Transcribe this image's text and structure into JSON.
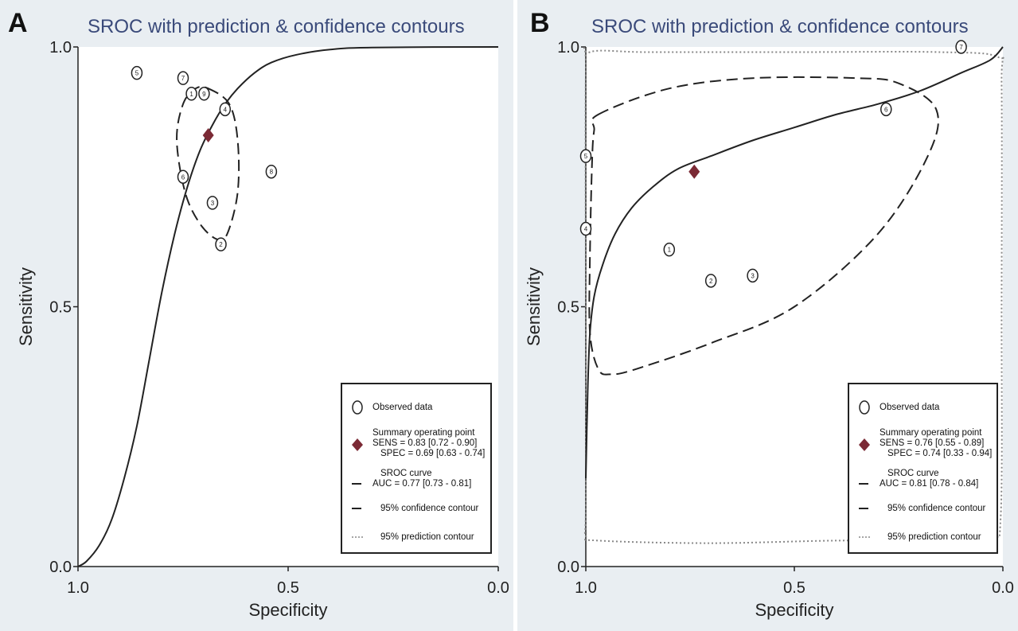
{
  "panels": [
    {
      "letter": "A",
      "legend": {
        "observed": "Observed data",
        "summary_title": "Summary operating point",
        "sens": "SENS = 0.83 [0.72 - 0.90]",
        "spec": "SPEC = 0.69 [0.63 - 0.74]",
        "sroc_title": "SROC curve",
        "auc": "AUC = 0.77 [0.73 - 0.81]",
        "confidence": "95% confidence contour",
        "prediction": "95% prediction contour"
      }
    },
    {
      "letter": "B",
      "legend": {
        "observed": "Observed data",
        "summary_title": "Summary operating point",
        "sens": "SENS = 0.76 [0.55 - 0.89]",
        "spec": "SPEC = 0.74 [0.33 - 0.94]",
        "sroc_title": "SROC curve",
        "auc": "AUC = 0.81 [0.78 - 0.84]",
        "confidence": "95% confidence contour",
        "prediction": "95% prediction contour"
      }
    }
  ],
  "colors": {
    "background": "#e9eef2",
    "title": "#3a4a7a",
    "summary_point": "#7b2a35",
    "line": "#222222",
    "prediction": "#888888"
  },
  "chart_data": [
    {
      "type": "scatter",
      "title": "SROC with prediction & confidence contours",
      "xlabel": "Specificity",
      "ylabel": "Sensitivity",
      "xlim": [
        1.0,
        0.0
      ],
      "ylim": [
        0.0,
        1.0
      ],
      "xticks": [
        "1.0",
        "0.5",
        "0.0"
      ],
      "yticks": [
        "0.0",
        "0.5",
        "1.0"
      ],
      "studies": [
        {
          "label": "1",
          "spec": 0.73,
          "sens": 0.91
        },
        {
          "label": "2",
          "spec": 0.66,
          "sens": 0.62
        },
        {
          "label": "3",
          "spec": 0.68,
          "sens": 0.7
        },
        {
          "label": "4",
          "spec": 0.65,
          "sens": 0.88
        },
        {
          "label": "5",
          "spec": 0.86,
          "sens": 0.95
        },
        {
          "label": "6",
          "spec": 0.75,
          "sens": 0.75
        },
        {
          "label": "7",
          "spec": 0.75,
          "sens": 0.94
        },
        {
          "label": "8",
          "spec": 0.54,
          "sens": 0.76
        },
        {
          "label": "9",
          "spec": 0.7,
          "sens": 0.91
        }
      ],
      "summary_point": {
        "spec": 0.69,
        "sens": 0.83
      },
      "sroc_curve": [
        [
          1.0,
          0.0
        ],
        [
          0.98,
          0.01
        ],
        [
          0.95,
          0.04
        ],
        [
          0.92,
          0.09
        ],
        [
          0.89,
          0.17
        ],
        [
          0.86,
          0.27
        ],
        [
          0.83,
          0.4
        ],
        [
          0.8,
          0.53
        ],
        [
          0.77,
          0.64
        ],
        [
          0.74,
          0.73
        ],
        [
          0.71,
          0.8
        ],
        [
          0.68,
          0.85
        ],
        [
          0.65,
          0.89
        ],
        [
          0.62,
          0.92
        ],
        [
          0.58,
          0.95
        ],
        [
          0.54,
          0.97
        ],
        [
          0.48,
          0.985
        ],
        [
          0.4,
          0.995
        ],
        [
          0.3,
          0.999
        ],
        [
          0.0,
          1.0
        ]
      ],
      "confidence_contour": [
        [
          0.69,
          0.92
        ],
        [
          0.64,
          0.89
        ],
        [
          0.62,
          0.82
        ],
        [
          0.62,
          0.72
        ],
        [
          0.645,
          0.64
        ],
        [
          0.67,
          0.63
        ],
        [
          0.71,
          0.66
        ],
        [
          0.745,
          0.72
        ],
        [
          0.765,
          0.82
        ],
        [
          0.75,
          0.89
        ],
        [
          0.72,
          0.92
        ]
      ],
      "prediction_contour": []
    },
    {
      "type": "scatter",
      "title": "SROC with prediction & confidence contours",
      "xlabel": "Specificity",
      "ylabel": "Sensitivity",
      "xlim": [
        1.0,
        0.0
      ],
      "ylim": [
        0.0,
        1.0
      ],
      "xticks": [
        "1.0",
        "0.5",
        "0.0"
      ],
      "yticks": [
        "0.0",
        "0.5",
        "1.0"
      ],
      "studies": [
        {
          "label": "1",
          "spec": 0.8,
          "sens": 0.61
        },
        {
          "label": "2",
          "spec": 0.7,
          "sens": 0.55
        },
        {
          "label": "3",
          "spec": 0.6,
          "sens": 0.56
        },
        {
          "label": "4",
          "spec": 1.0,
          "sens": 0.65
        },
        {
          "label": "5",
          "spec": 1.0,
          "sens": 0.79
        },
        {
          "label": "6",
          "spec": 0.28,
          "sens": 0.88
        },
        {
          "label": "7",
          "spec": 0.1,
          "sens": 1.0
        }
      ],
      "summary_point": {
        "spec": 0.74,
        "sens": 0.76
      },
      "sroc_curve": [
        [
          1.0,
          0.17
        ],
        [
          0.995,
          0.35
        ],
        [
          0.99,
          0.45
        ],
        [
          0.98,
          0.52
        ],
        [
          0.96,
          0.58
        ],
        [
          0.93,
          0.64
        ],
        [
          0.89,
          0.69
        ],
        [
          0.84,
          0.73
        ],
        [
          0.78,
          0.765
        ],
        [
          0.7,
          0.79
        ],
        [
          0.6,
          0.82
        ],
        [
          0.5,
          0.845
        ],
        [
          0.4,
          0.87
        ],
        [
          0.3,
          0.89
        ],
        [
          0.2,
          0.915
        ],
        [
          0.1,
          0.95
        ],
        [
          0.03,
          0.975
        ],
        [
          0.0,
          1.0
        ]
      ],
      "confidence_contour": [
        [
          0.97,
          0.87
        ],
        [
          0.8,
          0.92
        ],
        [
          0.6,
          0.94
        ],
        [
          0.35,
          0.94
        ],
        [
          0.25,
          0.93
        ],
        [
          0.16,
          0.88
        ],
        [
          0.18,
          0.79
        ],
        [
          0.3,
          0.64
        ],
        [
          0.5,
          0.5
        ],
        [
          0.7,
          0.43
        ],
        [
          0.88,
          0.38
        ],
        [
          0.94,
          0.37
        ],
        [
          0.97,
          0.38
        ],
        [
          0.99,
          0.45
        ],
        [
          0.99,
          0.6
        ],
        [
          0.985,
          0.78
        ],
        [
          0.98,
          0.84
        ]
      ],
      "prediction_contour": [
        [
          1.0,
          0.06
        ],
        [
          0.97,
          0.05
        ],
        [
          0.7,
          0.045
        ],
        [
          0.4,
          0.05
        ],
        [
          0.15,
          0.05
        ],
        [
          0.03,
          0.06
        ],
        [
          0.005,
          0.1
        ],
        [
          0.003,
          0.5
        ],
        [
          0.003,
          0.93
        ],
        [
          0.01,
          0.98
        ],
        [
          0.15,
          0.99
        ],
        [
          0.5,
          0.99
        ],
        [
          0.85,
          0.99
        ],
        [
          0.99,
          0.99
        ],
        [
          1.0,
          0.95
        ],
        [
          1.0,
          0.5
        ],
        [
          1.0,
          0.12
        ]
      ]
    }
  ]
}
